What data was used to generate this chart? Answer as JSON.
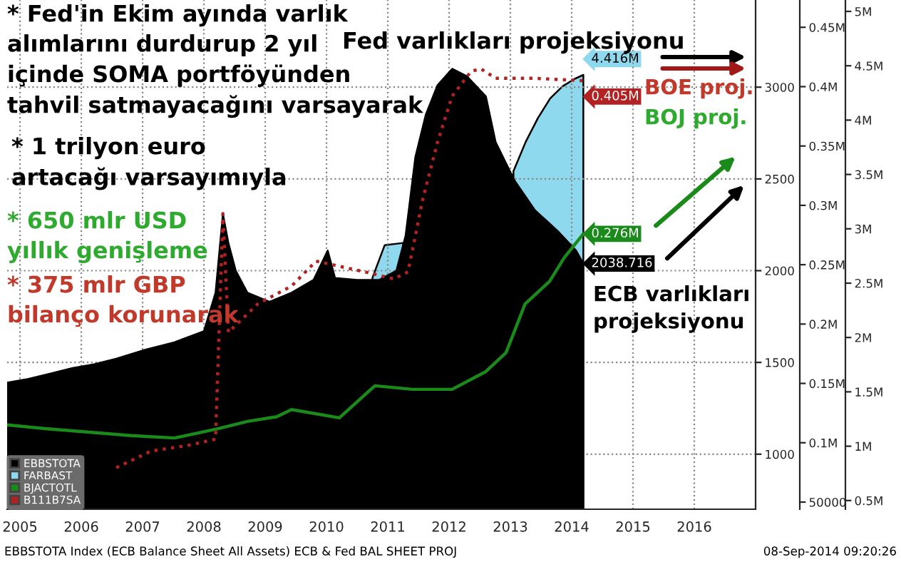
{
  "chart_data": {
    "type": "area",
    "xlim": [
      2005.29,
      2017.5
    ],
    "xticks": [
      {
        "value": 2005.5,
        "label": "2005"
      },
      {
        "value": 2006.5,
        "label": "2006"
      },
      {
        "value": 2007.5,
        "label": "2007"
      },
      {
        "value": 2008.5,
        "label": "2008"
      },
      {
        "value": 2009.5,
        "label": "2009"
      },
      {
        "value": 2010.5,
        "label": "2010"
      },
      {
        "value": 2011.5,
        "label": "2011"
      },
      {
        "value": 2012.5,
        "label": "2012"
      },
      {
        "value": 2013.5,
        "label": "2013"
      },
      {
        "value": 2014.5,
        "label": "2014"
      },
      {
        "value": 2015.5,
        "label": "2015"
      },
      {
        "value": 2016.5,
        "label": "2016"
      }
    ],
    "ylim": [
      700,
      3475
    ],
    "yticks": [
      1000,
      1500,
      2000,
      2500,
      3000
    ],
    "y2lim": [
      44000,
      473000
    ],
    "y2ticks": [
      {
        "value": 50000,
        "label": "50000"
      },
      {
        "value": 100000,
        "label": "0.1M"
      },
      {
        "value": 150000,
        "label": "0.15M"
      },
      {
        "value": 200000,
        "label": "0.2M"
      },
      {
        "value": 250000,
        "label": "0.25M"
      },
      {
        "value": 300000,
        "label": "0.3M"
      },
      {
        "value": 350000,
        "label": "0.35M"
      },
      {
        "value": 400000,
        "label": "0.4M"
      },
      {
        "value": 450000,
        "label": "0.45M"
      }
    ],
    "y3lim": [
      420000,
      5105000
    ],
    "y3ticks": [
      {
        "value": 500000,
        "label": "0.5M"
      },
      {
        "value": 1000000,
        "label": "1M"
      },
      {
        "value": 1500000,
        "label": "1.5M"
      },
      {
        "value": 2000000,
        "label": "2M"
      },
      {
        "value": 2500000,
        "label": "2.5M"
      },
      {
        "value": 3000000,
        "label": "3M"
      },
      {
        "value": 3500000,
        "label": "3.5M"
      },
      {
        "value": 4000000,
        "label": "4M"
      },
      {
        "value": 4500000,
        "label": "4.5M"
      },
      {
        "value": 5000000,
        "label": "5M"
      }
    ],
    "grid": true,
    "legend": "bottom left",
    "series": [
      {
        "name": "EBBSTOTA",
        "axis": "y",
        "color": "#000000",
        "x": [
          2005.29,
          2005.64,
          2006.0,
          2006.36,
          2006.71,
          2007.07,
          2007.55,
          2008.02,
          2008.5,
          2008.69,
          2008.81,
          2008.9,
          2009.02,
          2009.21,
          2009.57,
          2009.93,
          2010.29,
          2010.52,
          2010.64,
          2011.0,
          2011.36,
          2011.64,
          2011.79,
          2011.95,
          2012.12,
          2012.31,
          2012.55,
          2012.79,
          2013.1,
          2013.26,
          2013.57,
          2013.9,
          2014.29,
          2014.57,
          2014.69
        ],
        "values": [
          1390,
          1410,
          1440,
          1470,
          1490,
          1520,
          1570,
          1610,
          1670,
          1880,
          2310,
          2150,
          2000,
          1880,
          1830,
          1880,
          1950,
          2110,
          1960,
          1950,
          1950,
          2000,
          2190,
          2620,
          2850,
          3010,
          3100,
          3060,
          2950,
          2700,
          2490,
          2330,
          2210,
          2110,
          2038.716
        ],
        "value_labels": [
          null,
          null,
          null,
          null,
          null,
          null,
          null,
          null,
          null,
          null,
          null,
          null,
          null,
          null,
          null,
          null,
          null,
          null,
          null,
          null,
          null,
          null,
          null,
          null,
          null,
          null,
          null,
          null,
          null,
          null,
          null,
          null,
          null,
          null,
          "2038.716"
        ]
      },
      {
        "name": "FARBAST",
        "axis": "y3",
        "color": "#8fd9ef",
        "x": [
          2011.25,
          2011.45,
          2011.75,
          2012.5,
          2013.55,
          2013.75,
          2013.95,
          2014.15,
          2014.35,
          2014.55,
          2014.69
        ],
        "values": [
          2550000,
          2850000,
          2870000,
          null,
          3530000,
          3800000,
          4020000,
          4200000,
          4310000,
          4380000,
          4416000
        ],
        "value_labels": [
          null,
          null,
          null,
          null,
          null,
          null,
          null,
          null,
          null,
          null,
          "4.416M"
        ]
      },
      {
        "name": "BJACTOTL",
        "type": "line",
        "axis": "y2",
        "color": "#1a8a1a",
        "line_style": "solid",
        "x": [
          2005.29,
          2005.88,
          2006.6,
          2007.31,
          2008.02,
          2008.74,
          2009.21,
          2009.69,
          2009.93,
          2010.71,
          2011.29,
          2011.9,
          2012.55,
          2013.1,
          2013.43,
          2013.74,
          2014.14,
          2014.38,
          2014.69
        ],
        "values": [
          115000,
          112000,
          109000,
          106000,
          104000,
          112000,
          118000,
          122000,
          128000,
          121000,
          148000,
          145000,
          145000,
          160000,
          176000,
          217000,
          236000,
          256000,
          276000
        ],
        "value_labels": [
          null,
          null,
          null,
          null,
          null,
          null,
          null,
          null,
          null,
          null,
          null,
          null,
          null,
          null,
          null,
          null,
          null,
          null,
          "0.276M"
        ]
      },
      {
        "name": "B111B7SA",
        "type": "line",
        "axis": "y2",
        "color": "#b22222",
        "line_style": "dotted",
        "x": [
          2007.07,
          2007.64,
          2008.26,
          2008.69,
          2008.81,
          2008.9,
          2009.38,
          2009.93,
          2010.33,
          2011.12,
          2011.6,
          2011.83,
          2012.07,
          2012.31,
          2012.55,
          2012.86,
          2013.02,
          2013.26,
          2013.9,
          2014.69
        ],
        "values": [
          79000,
          93000,
          98000,
          103000,
          293000,
          193000,
          217000,
          232000,
          253000,
          244000,
          238000,
          244000,
          305000,
          353000,
          392000,
          413000,
          415000,
          407000,
          407000,
          405000
        ],
        "value_labels": [
          null,
          null,
          null,
          null,
          null,
          null,
          null,
          null,
          null,
          null,
          null,
          null,
          null,
          null,
          null,
          null,
          null,
          null,
          null,
          "0.405M"
        ]
      }
    ],
    "annotations": [
      "* Fed'in Ekim ayında varlık\nalımlarını durdurup 2 yıl\niçinde SOMA portföyünden\ntahvil satmayacağını varsayarak",
      "* 1 trilyon euro\nartacağı varsayımıyla",
      "* 650 mlr USD\nyıllık genişleme",
      "* 375 mlr GBP\nbilanço korunarak",
      "Fed varlıkları projeksiyonu",
      "BOE proj.",
      "BOJ proj.",
      "ECB varlıkları\nprojeksiyonu",
      "EBBSTOTA Index (ECB Balance Sheet All Assets) ECB & Fed BAL SHEET PROJ",
      "08-Sep-2014 09:20:26"
    ]
  }
}
